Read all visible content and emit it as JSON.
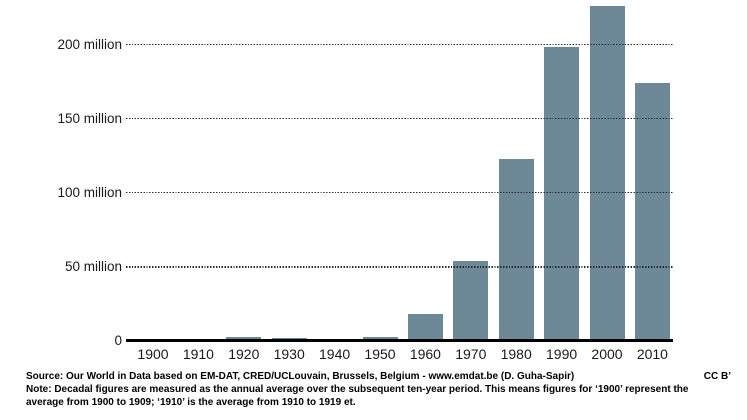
{
  "chart_data": {
    "type": "bar",
    "title": "",
    "xlabel": "",
    "ylabel": "",
    "categories": [
      "1900",
      "1910",
      "1920",
      "1930",
      "1940",
      "1950",
      "1960",
      "1970",
      "1980",
      "1990",
      "2000",
      "2010"
    ],
    "values": [
      0.2,
      0.3,
      2.5,
      2.2,
      0.4,
      2.5,
      18,
      54,
      123,
      198,
      226,
      174
    ],
    "value_unit": "million people",
    "ylim": [
      0,
      230
    ],
    "yticks": [
      {
        "value": 0,
        "label": "0"
      },
      {
        "value": 50,
        "label": "50 million"
      },
      {
        "value": 100,
        "label": "100 million"
      },
      {
        "value": 150,
        "label": "150 million"
      },
      {
        "value": 200,
        "label": "200 million"
      }
    ],
    "grid": "horizontal-dotted",
    "legend": "none",
    "bar_color": "#6D8998",
    "grid_color": "#2B2B2B",
    "axis_color": "#000000",
    "background_color": "#FFFFFF",
    "tick_text_color": "#1A1A1A"
  },
  "footer": {
    "source": "Source: Our World in Data based on EM-DAT, CRED/UCLouvain, Brussels, Belgium - www.emdat.be (D. Guha-Sapir)",
    "license": "CC B’",
    "note_lines": [
      "Note: Decadal figures are measured as the annual average over the subsequent ten-year period. This means figures for ‘1900’ represent the",
      "average from 1900 to 1909; ‘1910’ is the average from 1910 to 1919 et."
    ]
  }
}
